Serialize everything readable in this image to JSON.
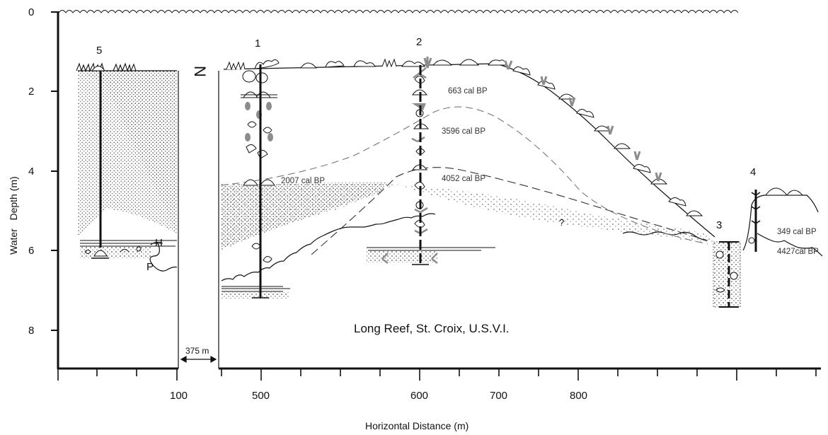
{
  "figure": {
    "site_title": "Long Reef, St. Croix, U.S.V.I.",
    "x_axis_title": "Horizontal Distance (m)",
    "y_axis_title": "Water   Depth (m)",
    "y_ticks": [
      "0",
      "2",
      "4",
      "6",
      "8"
    ],
    "x_ticks": [
      "100",
      "500",
      "600",
      "700",
      "800"
    ],
    "gap_label": "375 m",
    "north_label": "N",
    "question_mark": "?",
    "horizon_labels": {
      "h": "H",
      "p": "P"
    }
  },
  "cores": [
    {
      "id": "5",
      "label": "5",
      "distance_m": 50,
      "top_depth_m": 1.5,
      "bottom_depth_m": 5.9
    },
    {
      "id": "1",
      "label": "1",
      "distance_m": 500,
      "top_depth_m": 1.3,
      "bottom_depth_m": 7.2
    },
    {
      "id": "2",
      "label": "2",
      "distance_m": 600,
      "top_depth_m": 1.3,
      "bottom_depth_m": 6.3
    },
    {
      "id": "3",
      "label": "3",
      "distance_m": 800,
      "top_depth_m": 5.8,
      "bottom_depth_m": 7.4
    },
    {
      "id": "4",
      "label": "4",
      "distance_m": 815,
      "top_depth_m": 4.5,
      "bottom_depth_m": 6.1
    }
  ],
  "radiocarbon_dates": [
    {
      "core": "2",
      "text": "663 cal BP"
    },
    {
      "core": "2",
      "text": "3596 cal BP"
    },
    {
      "core": "1",
      "text": "2007 cal BP"
    },
    {
      "core": "2",
      "text": "4052 cal BP"
    },
    {
      "core": "4",
      "text": "349 cal BP"
    },
    {
      "core": "4",
      "text": "4427cal BP"
    }
  ],
  "colors": {
    "ink": "#111111",
    "coral_gray": "#8c8c8c",
    "dashed_line": "#777777"
  }
}
